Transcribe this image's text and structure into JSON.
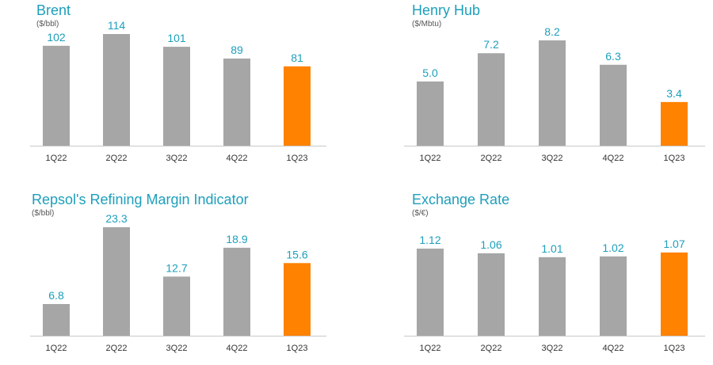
{
  "chart_data": [
    {
      "type": "bar",
      "title": "Brent",
      "unit": "($/bbl)",
      "categories": [
        "1Q22",
        "2Q22",
        "3Q22",
        "4Q22",
        "1Q23"
      ],
      "values": [
        102,
        114,
        101,
        89,
        81
      ],
      "value_labels": [
        "102",
        "114",
        "101",
        "89",
        "81"
      ],
      "ylim": [
        0,
        114
      ],
      "highlight_index": 4
    },
    {
      "type": "bar",
      "title": "Henry Hub",
      "unit": "($/Mbtu)",
      "categories": [
        "1Q22",
        "2Q22",
        "3Q22",
        "4Q22",
        "1Q23"
      ],
      "values": [
        5.0,
        7.2,
        8.2,
        6.3,
        3.4
      ],
      "value_labels": [
        "5.0",
        "7.2",
        "8.2",
        "6.3",
        "3.4"
      ],
      "ylim": [
        0,
        8.2
      ],
      "highlight_index": 4
    },
    {
      "type": "bar",
      "title": "Repsol's Refining Margin Indicator",
      "unit": "($/bbl)",
      "categories": [
        "1Q22",
        "2Q22",
        "3Q22",
        "4Q22",
        "1Q23"
      ],
      "values": [
        6.8,
        23.3,
        12.7,
        18.9,
        15.6
      ],
      "value_labels": [
        "6.8",
        "23.3",
        "12.7",
        "18.9",
        "15.6"
      ],
      "ylim": [
        0,
        23.3
      ],
      "highlight_index": 4
    },
    {
      "type": "bar",
      "title": "Exchange Rate",
      "unit": "($/€)",
      "categories": [
        "1Q22",
        "2Q22",
        "3Q22",
        "4Q22",
        "1Q23"
      ],
      "values": [
        1.12,
        1.06,
        1.01,
        1.02,
        1.07
      ],
      "value_labels": [
        "1.12",
        "1.06",
        "1.01",
        "1.02",
        "1.07"
      ],
      "ylim": [
        0,
        1.12
      ],
      "highlight_index": 4
    }
  ],
  "colors": {
    "bar": "#a6a6a6",
    "highlight": "#ff8200",
    "accent_text": "#1d9fbb",
    "axis": "#c8c8c8"
  }
}
